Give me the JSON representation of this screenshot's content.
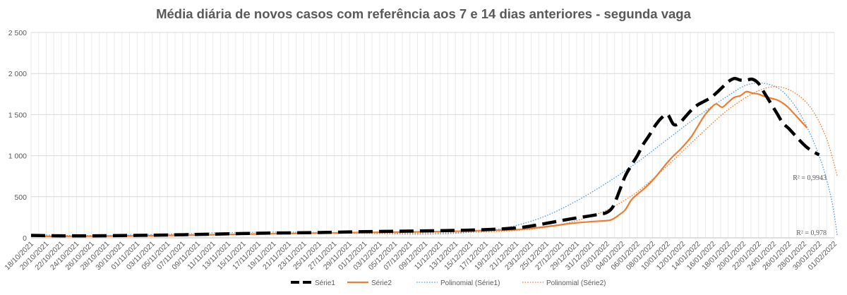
{
  "chart_data": {
    "type": "line",
    "title": "Média diária de novos casos com referência aos 7 e 14 dias anteriores - segunda vaga",
    "xlabel": "",
    "ylabel": "",
    "ylim": [
      0,
      2500
    ],
    "yticks": [
      0,
      500,
      1000,
      1500,
      2000,
      2500
    ],
    "ytick_labels": [
      "0",
      "500",
      "1 000",
      "1 500",
      "2 000",
      "2 500"
    ],
    "start_date": "2021-10-18",
    "end_date": "2022-02-01",
    "tick_labels": [
      "18/10/2021",
      "20/10/2021",
      "22/10/2021",
      "24/10/2021",
      "26/10/2021",
      "28/10/2021",
      "30/10/2021",
      "01/11/2021",
      "03/11/2021",
      "05/11/2021",
      "07/11/2021",
      "09/11/2021",
      "11/11/2021",
      "13/11/2021",
      "15/11/2021",
      "17/11/2021",
      "19/11/2021",
      "21/11/2021",
      "23/11/2021",
      "25/11/2021",
      "27/11/2021",
      "29/11/2021",
      "01/12/2021",
      "03/12/2021",
      "05/12/2021",
      "07/12/2021",
      "09/12/2021",
      "11/12/2021",
      "13/12/2021",
      "15/12/2021",
      "17/12/2021",
      "19/12/2021",
      "21/12/2021",
      "23/12/2021",
      "25/12/2021",
      "27/12/2021",
      "29/12/2021",
      "31/12/2021",
      "02/01/2022",
      "04/01/2022",
      "06/01/2022",
      "08/01/2022",
      "10/01/2022",
      "12/01/2022",
      "14/01/2022",
      "16/01/2022",
      "18/01/2022",
      "20/01/2022",
      "22/01/2022",
      "24/01/2022",
      "26/01/2022",
      "28/01/2022",
      "30/01/2022",
      "01/02/2022"
    ],
    "series": [
      {
        "name": "Série1",
        "color": "#000000",
        "style": "long-dash",
        "points": [
          [
            0,
            30
          ],
          [
            5,
            25
          ],
          [
            10,
            25
          ],
          [
            15,
            28
          ],
          [
            20,
            32
          ],
          [
            25,
            38
          ],
          [
            30,
            45
          ],
          [
            35,
            52
          ],
          [
            40,
            58
          ],
          [
            45,
            62
          ],
          [
            50,
            68
          ],
          [
            55,
            75
          ],
          [
            60,
            80
          ],
          [
            65,
            85
          ],
          [
            70,
            90
          ],
          [
            75,
            100
          ],
          [
            80,
            120
          ],
          [
            83,
            150
          ],
          [
            86,
            190
          ],
          [
            89,
            230
          ],
          [
            92,
            265
          ],
          [
            94,
            290
          ],
          [
            95,
            310
          ],
          [
            96,
            380
          ],
          [
            97,
            560
          ],
          [
            98,
            750
          ],
          [
            99,
            880
          ],
          [
            100,
            1000
          ],
          [
            101,
            1140
          ],
          [
            102,
            1250
          ],
          [
            103,
            1370
          ],
          [
            104,
            1460
          ],
          [
            105,
            1500
          ],
          [
            106,
            1380
          ],
          [
            107,
            1400
          ],
          [
            108,
            1480
          ],
          [
            109,
            1560
          ],
          [
            110,
            1620
          ],
          [
            111,
            1660
          ],
          [
            112,
            1700
          ],
          [
            113,
            1760
          ],
          [
            114,
            1830
          ],
          [
            115,
            1900
          ],
          [
            116,
            1940
          ],
          [
            117,
            1920
          ],
          [
            118,
            1920
          ],
          [
            119,
            1930
          ],
          [
            120,
            1880
          ],
          [
            121,
            1760
          ],
          [
            122,
            1640
          ],
          [
            123,
            1520
          ],
          [
            124,
            1400
          ],
          [
            125,
            1330
          ],
          [
            126,
            1250
          ],
          [
            127,
            1170
          ],
          [
            128,
            1100
          ],
          [
            129,
            1050
          ],
          [
            130,
            1010
          ]
        ]
      },
      {
        "name": "Série2",
        "color": "#ed7d31",
        "style": "solid",
        "points": [
          [
            0,
            20
          ],
          [
            5,
            18
          ],
          [
            10,
            20
          ],
          [
            15,
            22
          ],
          [
            20,
            26
          ],
          [
            25,
            32
          ],
          [
            30,
            38
          ],
          [
            35,
            45
          ],
          [
            40,
            50
          ],
          [
            45,
            55
          ],
          [
            50,
            60
          ],
          [
            55,
            66
          ],
          [
            60,
            70
          ],
          [
            65,
            75
          ],
          [
            70,
            80
          ],
          [
            75,
            90
          ],
          [
            80,
            100
          ],
          [
            83,
            120
          ],
          [
            86,
            145
          ],
          [
            89,
            175
          ],
          [
            92,
            195
          ],
          [
            95,
            210
          ],
          [
            96,
            230
          ],
          [
            97,
            280
          ],
          [
            98,
            340
          ],
          [
            99,
            460
          ],
          [
            100,
            530
          ],
          [
            101,
            590
          ],
          [
            102,
            660
          ],
          [
            103,
            740
          ],
          [
            104,
            830
          ],
          [
            105,
            920
          ],
          [
            106,
            1000
          ],
          [
            107,
            1070
          ],
          [
            108,
            1150
          ],
          [
            109,
            1240
          ],
          [
            110,
            1360
          ],
          [
            111,
            1480
          ],
          [
            112,
            1570
          ],
          [
            113,
            1630
          ],
          [
            114,
            1590
          ],
          [
            115,
            1650
          ],
          [
            116,
            1710
          ],
          [
            117,
            1730
          ],
          [
            118,
            1780
          ],
          [
            119,
            1760
          ],
          [
            120,
            1750
          ],
          [
            121,
            1720
          ],
          [
            122,
            1700
          ],
          [
            123,
            1680
          ],
          [
            124,
            1640
          ],
          [
            125,
            1580
          ],
          [
            126,
            1500
          ],
          [
            127,
            1420
          ],
          [
            128,
            1340
          ]
        ]
      },
      {
        "name": "Polinomial (Série1)",
        "color": "#5b9bd5",
        "style": "dotted",
        "r2_label": "R² = 0,978",
        "points": [
          [
            0,
            40
          ],
          [
            5,
            30
          ],
          [
            10,
            28
          ],
          [
            15,
            32
          ],
          [
            20,
            40
          ],
          [
            25,
            50
          ],
          [
            30,
            60
          ],
          [
            35,
            66
          ],
          [
            40,
            70
          ],
          [
            45,
            68
          ],
          [
            50,
            62
          ],
          [
            55,
            55
          ],
          [
            60,
            48
          ],
          [
            65,
            45
          ],
          [
            70,
            55
          ],
          [
            75,
            85
          ],
          [
            80,
            150
          ],
          [
            85,
            270
          ],
          [
            90,
            450
          ],
          [
            95,
            670
          ],
          [
            100,
            920
          ],
          [
            105,
            1200
          ],
          [
            110,
            1480
          ],
          [
            115,
            1730
          ],
          [
            118,
            1860
          ],
          [
            121,
            1880
          ],
          [
            124,
            1780
          ],
          [
            127,
            1490
          ],
          [
            130,
            1000
          ],
          [
            132,
            480
          ],
          [
            133,
            20
          ]
        ]
      },
      {
        "name": "Polinomial (Série2)",
        "color": "#ed7d31",
        "style": "dotted",
        "r2_label": "R² = 0,9943",
        "points": [
          [
            0,
            20
          ],
          [
            5,
            20
          ],
          [
            10,
            22
          ],
          [
            15,
            25
          ],
          [
            20,
            30
          ],
          [
            25,
            35
          ],
          [
            30,
            42
          ],
          [
            35,
            48
          ],
          [
            40,
            52
          ],
          [
            45,
            55
          ],
          [
            50,
            57
          ],
          [
            55,
            58
          ],
          [
            60,
            58
          ],
          [
            65,
            60
          ],
          [
            70,
            65
          ],
          [
            75,
            72
          ],
          [
            80,
            90
          ],
          [
            85,
            130
          ],
          [
            90,
            210
          ],
          [
            95,
            340
          ],
          [
            100,
            560
          ],
          [
            105,
            880
          ],
          [
            110,
            1230
          ],
          [
            115,
            1560
          ],
          [
            120,
            1790
          ],
          [
            124,
            1830
          ],
          [
            128,
            1640
          ],
          [
            131,
            1250
          ],
          [
            133,
            750
          ]
        ]
      }
    ],
    "legend_position": "bottom",
    "legend": [
      "Série1",
      "Série2",
      "Polinomial (Série1)",
      "Polinomial (Série2)"
    ]
  }
}
